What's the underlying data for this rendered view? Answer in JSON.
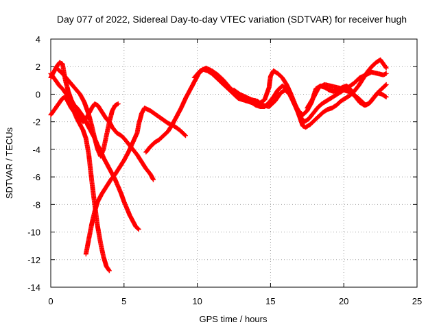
{
  "chart_data": {
    "type": "scatter",
    "title": "Day 077 of 2022, Sidereal Day-to-day VTEC variation (SDTVAR) for receiver hugh",
    "xlabel": "GPS time / hours",
    "ylabel": "SDTVAR / TECUs",
    "xlim": [
      0,
      25
    ],
    "ylim": [
      -14,
      4
    ],
    "xticks": [
      "0",
      "5",
      "10",
      "15",
      "20",
      "25"
    ],
    "yticks": [
      "-14",
      "-12",
      "-10",
      "-8",
      "-6",
      "-4",
      "-2",
      "0",
      "2",
      "4"
    ],
    "grid": true,
    "marker": "plus",
    "color": "#ff0000",
    "series": [
      {
        "points": [
          [
            0.0,
            1.2
          ],
          [
            0.2,
            1.6
          ],
          [
            0.4,
            2.0
          ],
          [
            0.6,
            2.3
          ],
          [
            0.8,
            2.2
          ],
          [
            0.9,
            1.6
          ],
          [
            1.0,
            1.0
          ],
          [
            1.2,
            0.2
          ],
          [
            1.4,
            -0.4
          ],
          [
            1.6,
            -0.8
          ],
          [
            1.8,
            -1.3
          ],
          [
            2.0,
            -1.7
          ],
          [
            2.2,
            -2.0
          ],
          [
            2.4,
            -1.8
          ],
          [
            2.6,
            -1.4
          ],
          [
            2.8,
            -1.0
          ],
          [
            3.0,
            -0.7
          ],
          [
            3.2,
            -0.8
          ],
          [
            3.5,
            -1.3
          ],
          [
            3.8,
            -1.8
          ],
          [
            4.0,
            -2.0
          ],
          [
            4.2,
            -2.4
          ],
          [
            4.5,
            -2.8
          ],
          [
            4.8,
            -3.0
          ],
          [
            5.0,
            -3.2
          ],
          [
            5.3,
            -3.6
          ],
          [
            5.6,
            -4.0
          ],
          [
            5.9,
            -4.4
          ],
          [
            6.2,
            -4.9
          ],
          [
            6.5,
            -5.4
          ],
          [
            6.8,
            -5.8
          ],
          [
            7.0,
            -6.2
          ]
        ]
      },
      {
        "points": [
          [
            0.0,
            -1.5
          ],
          [
            0.2,
            -1.2
          ],
          [
            0.4,
            -0.9
          ],
          [
            0.6,
            -0.6
          ],
          [
            0.8,
            -0.3
          ],
          [
            1.0,
            -0.2
          ],
          [
            1.2,
            -0.6
          ],
          [
            1.4,
            -1.0
          ],
          [
            1.6,
            -1.3
          ],
          [
            1.8,
            -1.8
          ],
          [
            2.0,
            -2.2
          ],
          [
            2.2,
            -2.6
          ],
          [
            2.4,
            -3.2
          ],
          [
            2.6,
            -4.4
          ],
          [
            2.8,
            -6.3
          ],
          [
            3.0,
            -8.0
          ],
          [
            3.2,
            -9.6
          ],
          [
            3.4,
            -10.8
          ],
          [
            3.6,
            -11.8
          ],
          [
            3.8,
            -12.5
          ],
          [
            4.0,
            -12.8
          ]
        ]
      },
      {
        "points": [
          [
            0.0,
            1.5
          ],
          [
            0.2,
            1.2
          ],
          [
            0.4,
            0.9
          ],
          [
            0.6,
            0.6
          ],
          [
            0.8,
            0.4
          ],
          [
            1.0,
            0.1
          ],
          [
            1.2,
            -0.2
          ],
          [
            1.4,
            -0.5
          ],
          [
            1.6,
            -0.8
          ],
          [
            1.8,
            -1.0
          ],
          [
            2.0,
            -1.3
          ],
          [
            2.2,
            -1.6
          ],
          [
            2.4,
            -2.0
          ],
          [
            2.6,
            -2.4
          ],
          [
            2.8,
            -2.8
          ],
          [
            3.0,
            -3.2
          ],
          [
            3.2,
            -3.7
          ],
          [
            3.4,
            -4.1
          ],
          [
            3.6,
            -4.6
          ],
          [
            3.8,
            -5.0
          ],
          [
            4.0,
            -5.4
          ],
          [
            4.2,
            -5.8
          ],
          [
            4.4,
            -6.2
          ],
          [
            4.6,
            -6.7
          ],
          [
            4.8,
            -7.2
          ],
          [
            5.0,
            -7.8
          ],
          [
            5.2,
            -8.3
          ],
          [
            5.4,
            -8.8
          ],
          [
            5.6,
            -9.2
          ],
          [
            5.8,
            -9.6
          ],
          [
            6.0,
            -9.8
          ]
        ]
      },
      {
        "points": [
          [
            0.4,
            1.9
          ],
          [
            0.8,
            1.5
          ],
          [
            1.2,
            1.0
          ],
          [
            1.6,
            0.5
          ],
          [
            2.0,
            0.0
          ],
          [
            2.3,
            -0.6
          ],
          [
            2.6,
            -1.5
          ],
          [
            2.8,
            -2.3
          ],
          [
            3.0,
            -3.2
          ],
          [
            3.2,
            -4.0
          ],
          [
            3.4,
            -4.5
          ],
          [
            3.6,
            -4.0
          ],
          [
            3.8,
            -3.0
          ],
          [
            4.0,
            -2.0
          ],
          [
            4.2,
            -1.2
          ],
          [
            4.4,
            -0.8
          ],
          [
            4.6,
            -0.7
          ]
        ]
      },
      {
        "points": [
          [
            2.4,
            -11.6
          ],
          [
            2.6,
            -10.5
          ],
          [
            2.8,
            -9.4
          ],
          [
            3.0,
            -8.5
          ],
          [
            3.2,
            -7.8
          ],
          [
            3.5,
            -7.2
          ],
          [
            3.8,
            -6.7
          ],
          [
            4.1,
            -6.2
          ],
          [
            4.4,
            -5.8
          ],
          [
            4.7,
            -5.3
          ],
          [
            5.0,
            -4.8
          ],
          [
            5.3,
            -4.2
          ],
          [
            5.6,
            -3.5
          ],
          [
            5.9,
            -2.8
          ],
          [
            6.0,
            -2.2
          ],
          [
            6.2,
            -1.4
          ],
          [
            6.4,
            -1.0
          ],
          [
            6.8,
            -1.2
          ],
          [
            7.2,
            -1.5
          ],
          [
            7.6,
            -1.8
          ],
          [
            8.0,
            -2.1
          ],
          [
            8.4,
            -2.3
          ],
          [
            8.8,
            -2.6
          ],
          [
            9.2,
            -3.0
          ]
        ]
      },
      {
        "points": [
          [
            6.5,
            -4.2
          ],
          [
            6.8,
            -3.8
          ],
          [
            7.1,
            -3.5
          ],
          [
            7.4,
            -3.3
          ],
          [
            7.7,
            -3.0
          ],
          [
            8.0,
            -2.7
          ],
          [
            8.3,
            -2.2
          ],
          [
            8.6,
            -1.6
          ],
          [
            8.9,
            -1.0
          ],
          [
            9.2,
            -0.3
          ],
          [
            9.5,
            0.3
          ],
          [
            9.8,
            0.9
          ],
          [
            10.1,
            1.5
          ],
          [
            10.4,
            1.8
          ],
          [
            10.7,
            1.7
          ],
          [
            11.0,
            1.5
          ],
          [
            11.3,
            1.2
          ],
          [
            11.6,
            0.9
          ],
          [
            11.9,
            0.6
          ],
          [
            12.2,
            0.3
          ],
          [
            12.5,
            0.0
          ],
          [
            12.8,
            -0.3
          ],
          [
            13.1,
            -0.4
          ],
          [
            13.4,
            -0.5
          ],
          [
            13.7,
            -0.6
          ],
          [
            14.0,
            -0.8
          ],
          [
            14.3,
            -0.9
          ],
          [
            14.6,
            -0.9
          ],
          [
            14.9,
            -0.6
          ],
          [
            15.2,
            -0.2
          ],
          [
            15.5,
            0.3
          ],
          [
            15.8,
            0.6
          ],
          [
            16.1,
            0.4
          ],
          [
            16.4,
            -0.2
          ],
          [
            16.7,
            -0.9
          ],
          [
            17.0,
            -1.6
          ],
          [
            17.3,
            -2.0
          ],
          [
            17.6,
            -1.8
          ],
          [
            17.9,
            -1.4
          ],
          [
            18.2,
            -1.0
          ],
          [
            18.5,
            -0.7
          ],
          [
            18.8,
            -0.5
          ],
          [
            19.1,
            -0.3
          ],
          [
            19.4,
            -0.1
          ],
          [
            19.7,
            0.1
          ],
          [
            20.0,
            0.3
          ],
          [
            20.3,
            0.2
          ],
          [
            20.6,
            0.0
          ],
          [
            20.9,
            -0.2
          ],
          [
            21.2,
            -0.5
          ],
          [
            21.5,
            -0.8
          ],
          [
            21.8,
            -0.6
          ],
          [
            22.1,
            -0.2
          ],
          [
            22.4,
            0.2
          ],
          [
            22.7,
            0.5
          ],
          [
            22.9,
            0.7
          ]
        ]
      },
      {
        "points": [
          [
            9.8,
            1.2
          ],
          [
            10.2,
            1.7
          ],
          [
            10.6,
            1.9
          ],
          [
            11.0,
            1.7
          ],
          [
            11.4,
            1.4
          ],
          [
            11.8,
            1.0
          ],
          [
            12.2,
            0.5
          ],
          [
            12.6,
            0.1
          ],
          [
            13.0,
            -0.2
          ],
          [
            13.4,
            -0.4
          ],
          [
            13.8,
            -0.5
          ],
          [
            14.2,
            -0.7
          ],
          [
            14.6,
            -0.4
          ],
          [
            14.9,
            0.5
          ],
          [
            15.0,
            1.3
          ],
          [
            15.2,
            1.7
          ],
          [
            15.5,
            1.5
          ],
          [
            15.8,
            1.2
          ],
          [
            16.1,
            0.7
          ],
          [
            16.4,
            0.0
          ],
          [
            16.7,
            -0.8
          ],
          [
            17.0,
            -1.7
          ],
          [
            17.2,
            -2.3
          ],
          [
            17.4,
            -2.4
          ],
          [
            17.7,
            -2.2
          ],
          [
            18.0,
            -1.9
          ],
          [
            18.3,
            -1.6
          ],
          [
            18.6,
            -1.3
          ],
          [
            18.9,
            -1.1
          ],
          [
            19.2,
            -1.0
          ],
          [
            19.5,
            -0.8
          ],
          [
            19.8,
            -0.5
          ],
          [
            20.1,
            -0.3
          ],
          [
            20.4,
            -0.1
          ],
          [
            20.7,
            0.2
          ],
          [
            21.0,
            0.6
          ],
          [
            21.3,
            1.1
          ],
          [
            21.6,
            1.6
          ],
          [
            21.9,
            2.0
          ],
          [
            22.2,
            2.3
          ],
          [
            22.5,
            2.5
          ],
          [
            22.7,
            2.2
          ],
          [
            22.9,
            1.9
          ]
        ]
      },
      {
        "points": [
          [
            12.5,
            0.3
          ],
          [
            12.9,
            0.0
          ],
          [
            13.3,
            -0.2
          ],
          [
            13.7,
            -0.4
          ],
          [
            14.1,
            -0.5
          ],
          [
            14.5,
            -0.8
          ],
          [
            14.9,
            -0.9
          ],
          [
            15.3,
            -0.5
          ],
          [
            15.7,
            0.1
          ],
          [
            16.0,
            0.3
          ],
          [
            16.3,
            0.0
          ],
          [
            16.6,
            -0.6
          ],
          [
            16.9,
            -1.2
          ],
          [
            17.2,
            -1.5
          ],
          [
            17.5,
            -1.2
          ],
          [
            17.8,
            -0.6
          ],
          [
            18.1,
            0.4
          ],
          [
            18.4,
            0.6
          ],
          [
            18.7,
            0.5
          ],
          [
            19.0,
            0.3
          ],
          [
            19.3,
            0.2
          ],
          [
            19.6,
            0.3
          ],
          [
            19.9,
            0.5
          ],
          [
            20.2,
            0.6
          ],
          [
            20.5,
            0.3
          ],
          [
            20.8,
            -0.2
          ],
          [
            21.1,
            -0.6
          ],
          [
            21.4,
            -0.8
          ],
          [
            21.7,
            -0.7
          ],
          [
            22.0,
            -0.3
          ],
          [
            22.3,
            0.1
          ],
          [
            22.6,
            0.0
          ],
          [
            22.9,
            -0.2
          ]
        ]
      },
      {
        "points": [
          [
            17.5,
            -1.0
          ],
          [
            17.9,
            -0.3
          ],
          [
            18.3,
            0.5
          ],
          [
            18.7,
            0.7
          ],
          [
            19.1,
            0.6
          ],
          [
            19.5,
            0.5
          ],
          [
            19.9,
            0.4
          ],
          [
            20.3,
            0.5
          ],
          [
            20.7,
            0.8
          ],
          [
            21.1,
            1.2
          ],
          [
            21.5,
            1.4
          ],
          [
            21.9,
            1.6
          ],
          [
            22.3,
            1.5
          ],
          [
            22.7,
            1.4
          ],
          [
            22.9,
            1.5
          ]
        ]
      }
    ]
  }
}
